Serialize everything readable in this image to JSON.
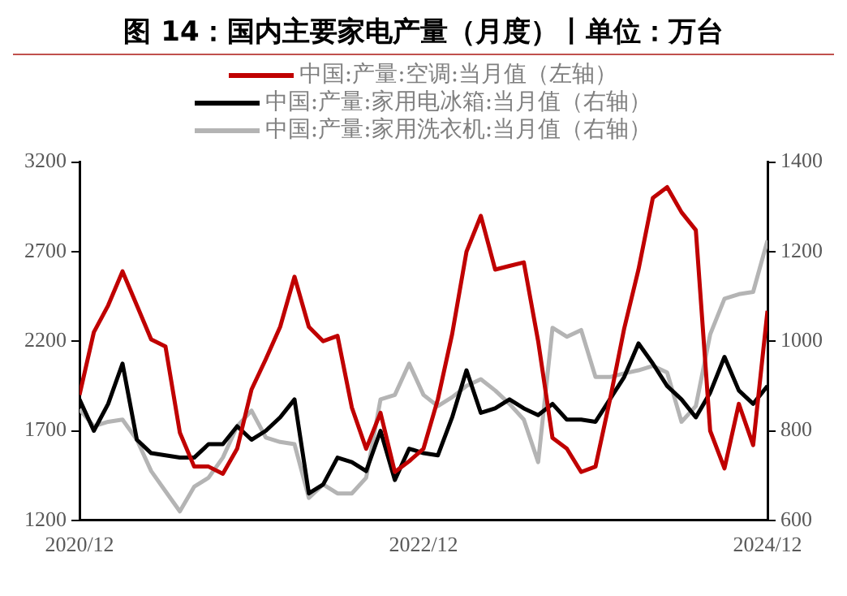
{
  "chart_data": {
    "type": "line",
    "title": "图 14：国内主要家电产量（月度）丨单位：万台",
    "x": [
      "2020-12",
      "2021-01",
      "2021-02",
      "2021-03",
      "2021-04",
      "2021-05",
      "2021-06",
      "2021-07",
      "2021-08",
      "2021-09",
      "2021-10",
      "2021-11",
      "2021-12",
      "2022-01",
      "2022-02",
      "2022-03",
      "2022-04",
      "2022-05",
      "2022-06",
      "2022-07",
      "2022-08",
      "2022-09",
      "2022-10",
      "2022-11",
      "2022-12",
      "2023-01",
      "2023-02",
      "2023-03",
      "2023-04",
      "2023-05",
      "2023-06",
      "2023-07",
      "2023-08",
      "2023-09",
      "2023-10",
      "2023-11",
      "2023-12",
      "2024-01",
      "2024-02",
      "2024-03",
      "2024-04",
      "2024-05",
      "2024-06",
      "2024-07",
      "2024-08",
      "2024-09",
      "2024-10",
      "2024-11",
      "2024-12"
    ],
    "series": [
      {
        "name": "中国:产量:空调:当月值（左轴）",
        "color": "#c00000",
        "axis": "y",
        "values": [
          1900,
          2250,
          2400,
          2590,
          2400,
          2210,
          2170,
          1690,
          1500,
          1500,
          1460,
          1600,
          1930,
          2100,
          2280,
          2560,
          2280,
          2200,
          2230,
          1830,
          1600,
          1800,
          1470,
          1530,
          1600,
          1875,
          2240,
          2700,
          2900,
          2600,
          2620,
          2640,
          2200,
          1660,
          1600,
          1470,
          1500,
          1870,
          2270,
          2600,
          3000,
          3060,
          2920,
          2820,
          1700,
          1490,
          1850,
          1620,
          2370
        ]
      },
      {
        "name": "中国:产量:家用电冰箱:当月值（右轴）",
        "color": "#000000",
        "axis": "y2",
        "values": [
          870,
          800,
          860,
          950,
          780,
          750,
          745,
          740,
          740,
          770,
          770,
          810,
          780,
          800,
          830,
          870,
          660,
          680,
          740,
          730,
          710,
          800,
          690,
          760,
          750,
          745,
          830,
          935,
          840,
          850,
          870,
          850,
          835,
          860,
          825,
          825,
          820,
          870,
          920,
          995,
          950,
          900,
          870,
          830,
          885,
          965,
          890,
          860,
          900
        ]
      },
      {
        "name": "中国:产量:家用洗衣机:当月值（右轴）",
        "color": "#b4b4b4",
        "axis": "y2",
        "values": [
          848,
          810,
          820,
          825,
          780,
          710,
          665,
          620,
          675,
          695,
          740,
          810,
          845,
          785,
          775,
          770,
          650,
          680,
          660,
          660,
          695,
          870,
          880,
          950,
          880,
          855,
          875,
          900,
          915,
          890,
          860,
          825,
          730,
          1030,
          1010,
          1025,
          920,
          920,
          928,
          935,
          945,
          930,
          820,
          855,
          1015,
          1095,
          1105,
          1110,
          1225
        ]
      }
    ],
    "xlim": [
      "2020-12",
      "2024-12"
    ],
    "xticks": [
      {
        "value": "2020-12",
        "label": "2020/12"
      },
      {
        "value": "2022-12",
        "label": "2022/12"
      },
      {
        "value": "2024-12",
        "label": "2024/12"
      }
    ],
    "ylim": [
      1200,
      3200
    ],
    "yticks": [
      1200,
      1700,
      2200,
      2700,
      3200
    ],
    "y2lim": [
      600,
      1400
    ],
    "y2ticks": [
      600,
      800,
      1000,
      1200,
      1400
    ],
    "legend": "top",
    "grid": false,
    "marker": "none",
    "line_style": "solid"
  }
}
